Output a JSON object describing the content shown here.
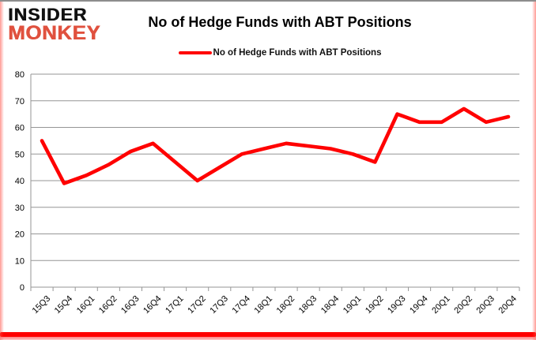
{
  "logo": {
    "line1": "INSIDER",
    "line2": "MONKEY"
  },
  "title": "No of Hedge Funds with ABT Positions",
  "legend": {
    "label": "No of Hedge Funds with ABT Positions"
  },
  "colors": {
    "line": "#FF0000",
    "grid": "#969696",
    "axis": "#969696",
    "label_text": "#000000",
    "logo_black": "#111111",
    "logo_red": "#E0513E",
    "bottom_bar": "#FF0000"
  },
  "chart_data": {
    "type": "line",
    "title": "No of Hedge Funds with ABT Positions",
    "categories": [
      "15Q3",
      "15Q4",
      "16Q1",
      "16Q2",
      "16Q3",
      "16Q4",
      "17Q1",
      "17Q2",
      "17Q3",
      "17Q4",
      "18Q1",
      "18Q2",
      "18Q3",
      "18Q4",
      "19Q1",
      "19Q2",
      "19Q3",
      "19Q4",
      "20Q1",
      "20Q2",
      "20Q3",
      "20Q4"
    ],
    "series": [
      {
        "name": "No of Hedge Funds with ABT Positions",
        "color": "#FF0000",
        "values": [
          55,
          39,
          42,
          46,
          51,
          54,
          47,
          40,
          45,
          50,
          52,
          54,
          53,
          52,
          50,
          47,
          65,
          62,
          62,
          67,
          62,
          64
        ]
      }
    ],
    "xlabel": "",
    "ylabel": "",
    "ylim": [
      0,
      80
    ],
    "ytick_interval": 10,
    "grid": true,
    "legend_position": "top-center"
  }
}
